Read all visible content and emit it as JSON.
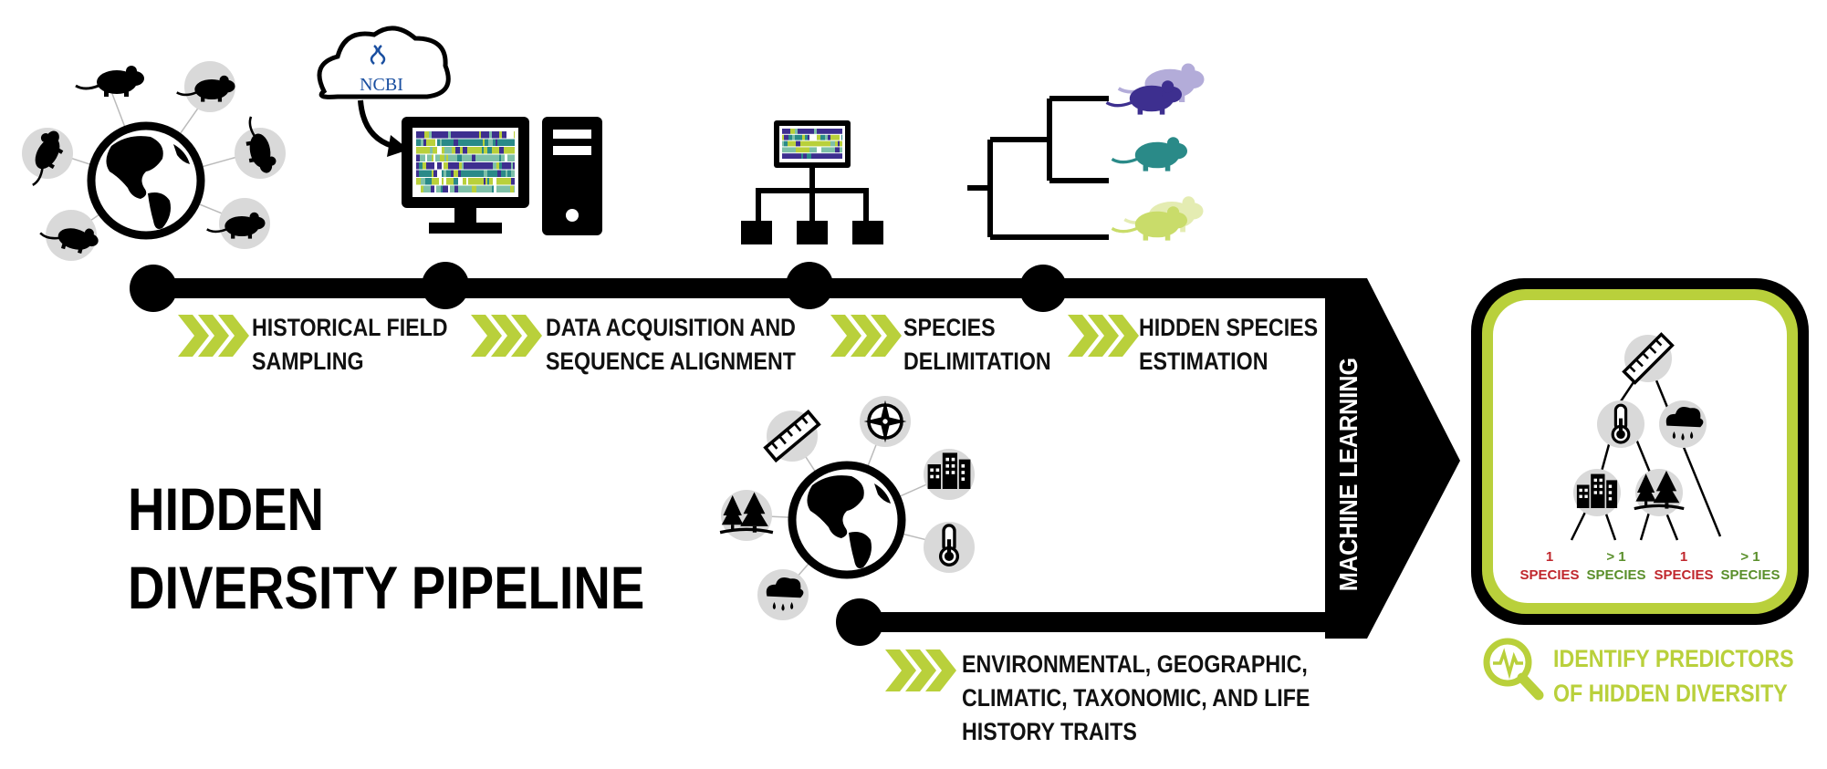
{
  "title": {
    "line1": "HIDDEN",
    "line2": "DIVERSITY PIPELINE"
  },
  "steps": [
    {
      "line1": "HISTORICAL FIELD",
      "line2": "SAMPLING"
    },
    {
      "line1": "DATA ACQUISITION AND",
      "line2": "SEQUENCE ALIGNMENT"
    },
    {
      "line1": "SPECIES",
      "line2": "DELIMITATION"
    },
    {
      "line1": "HIDDEN SPECIES",
      "line2": "ESTIMATION"
    }
  ],
  "traits": {
    "line1": "ENVIRONMENTAL, GEOGRAPHIC,",
    "line2": "CLIMATIC, TAXONOMIC, AND LIFE",
    "line3": "HISTORY TRAITS"
  },
  "machine_learning_label": "MACHINE LEARNING",
  "cloud_label": "NCBI",
  "tree_leaves": [
    {
      "count": "1",
      "word": "SPECIES",
      "color": "red"
    },
    {
      "count": "> 1",
      "word": "SPECIES",
      "color": "green"
    },
    {
      "count": "1",
      "word": "SPECIES",
      "color": "red"
    },
    {
      "count": "> 1",
      "word": "SPECIES",
      "color": "green"
    }
  ],
  "outcome": {
    "line1": "IDENTIFY PREDICTORS",
    "line2": "OF HIDDEN DIVERSITY"
  },
  "colors": {
    "accent_green": "#b9d03b",
    "black": "#000000",
    "icon_gray": "#d9d9d9",
    "mouse_purple_light": "#b3acd9",
    "mouse_purple_dark": "#3d2f8f",
    "mouse_teal": "#2a8a88",
    "mouse_green": "#c9dc6a"
  },
  "icons": [
    "globe-icon",
    "mouse-icon",
    "cloud-icon",
    "computer-icon",
    "network-icon",
    "phylogeny-icon",
    "ruler-icon",
    "compass-icon",
    "buildings-icon",
    "thermometer-icon",
    "rain-cloud-icon",
    "trees-icon",
    "magnifier-icon"
  ]
}
